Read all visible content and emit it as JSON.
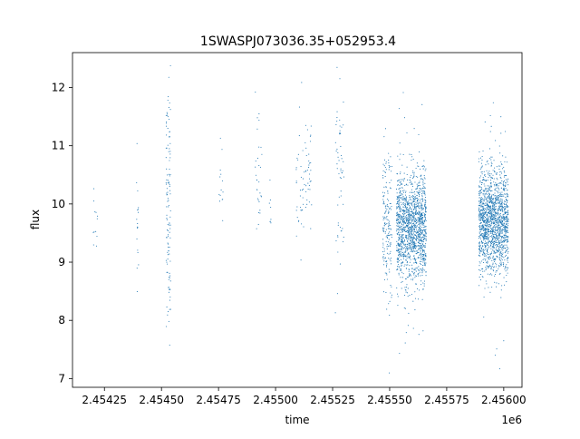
{
  "chart_data": {
    "type": "scatter",
    "title": "1SWASPJ073036.35+052953.4",
    "xlabel": "time",
    "ylabel": "flux",
    "x_offset_label": "1e6",
    "xlim": [
      2.45411,
      2.45608
    ],
    "ylim": [
      6.85,
      12.6
    ],
    "x_ticks": [
      2.45425,
      2.4545,
      2.45475,
      2.455,
      2.45525,
      2.4555,
      2.45575,
      2.456
    ],
    "x_tick_labels": [
      "2.45425",
      "2.45450",
      "2.45475",
      "2.45500",
      "2.45525",
      "2.45550",
      "2.45575",
      "2.45600"
    ],
    "y_ticks": [
      7,
      8,
      9,
      10,
      11,
      12
    ],
    "y_tick_labels": [
      "7",
      "8",
      "9",
      "10",
      "11",
      "12"
    ],
    "grid": false,
    "marker_color": "#1f77b4",
    "clusters": [
      {
        "x": [
          2.4542,
          2.45422
        ],
        "y_center": 9.7,
        "y_spread": 0.5,
        "count": 12
      },
      {
        "x": [
          2.45439,
          2.4544
        ],
        "y_center": 9.7,
        "y_spread": 0.4,
        "count": 18
      },
      {
        "x": [
          2.45452,
          2.45454
        ],
        "y_center": 9.9,
        "y_spread": 1.3,
        "count": 120
      },
      {
        "x": [
          2.45475,
          2.45477
        ],
        "y_center": 10.3,
        "y_spread": 0.4,
        "count": 14
      },
      {
        "x": [
          2.45491,
          2.45494
        ],
        "y_center": 10.6,
        "y_spread": 0.6,
        "count": 30
      },
      {
        "x": [
          2.45497,
          2.45498
        ],
        "y_center": 9.9,
        "y_spread": 0.4,
        "count": 8
      },
      {
        "x": [
          2.45509,
          2.45516
        ],
        "y_center": 10.5,
        "y_spread": 0.5,
        "count": 70
      },
      {
        "x": [
          2.45526,
          2.4553
        ],
        "y_center": 10.7,
        "y_spread": 0.9,
        "count": 60
      },
      {
        "x": [
          2.45547,
          2.45551
        ],
        "y_center": 9.7,
        "y_spread": 0.6,
        "count": 180
      },
      {
        "x": [
          2.45553,
          2.45566
        ],
        "y_center": 9.6,
        "y_spread": 0.45,
        "count": 1500
      },
      {
        "x": [
          2.45589,
          2.45602
        ],
        "y_center": 9.7,
        "y_spread": 0.45,
        "count": 1600
      }
    ]
  }
}
